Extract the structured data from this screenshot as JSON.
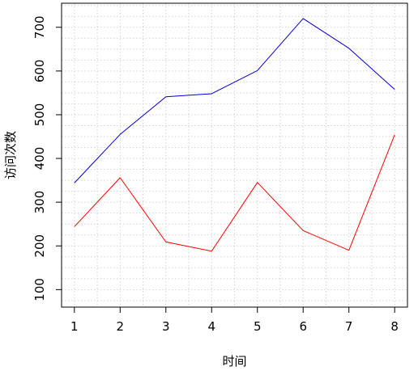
{
  "chart_data": {
    "type": "line",
    "title": "",
    "xlabel": "时间",
    "ylabel": "访问次数",
    "x": [
      1,
      2,
      3,
      4,
      5,
      6,
      7,
      8
    ],
    "x_ticks": [
      "1",
      "2",
      "3",
      "4",
      "5",
      "6",
      "7",
      "8"
    ],
    "y_ticks": [
      "100",
      "200",
      "300",
      "400",
      "500",
      "600",
      "700"
    ],
    "xlim": [
      0.72,
      8.28
    ],
    "ylim": [
      60,
      755
    ],
    "grid": true,
    "series": [
      {
        "color": "#0000cd",
        "values": [
          344,
          455,
          541,
          548,
          601,
          720,
          652,
          558
        ]
      },
      {
        "color": "#ff0000",
        "values": [
          244,
          356,
          209,
          188,
          345,
          235,
          190,
          454
        ]
      }
    ]
  }
}
